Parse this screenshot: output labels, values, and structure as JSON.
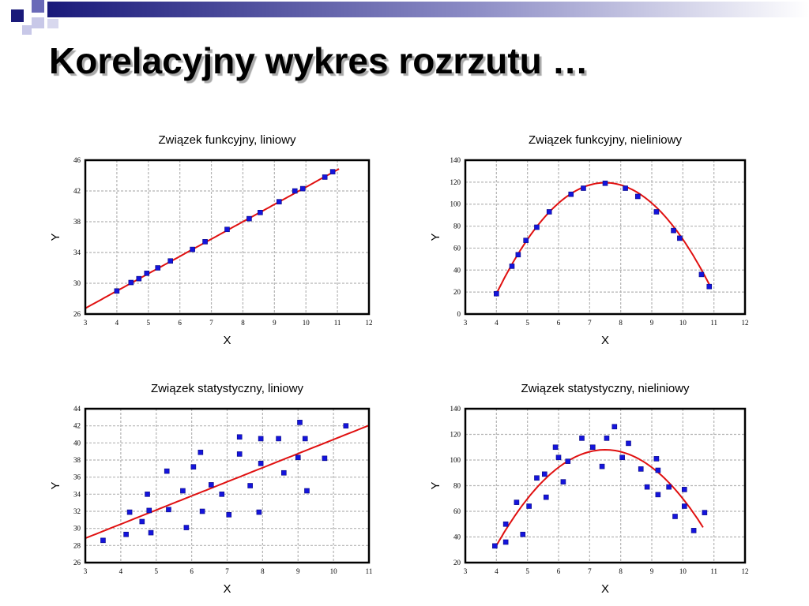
{
  "slide": {
    "title": "Korelacyjny wykres rozrzutu …",
    "colors": {
      "deco_dark": "#1a1a7a",
      "deco_mid": "#6a6ab8",
      "deco_light": "#c8c8e8"
    }
  },
  "chart_data": [
    {
      "type": "scatter",
      "title": "Związek funkcyjny, liniowy",
      "xlabel": "X",
      "ylabel": "Y",
      "xlim": [
        3,
        12
      ],
      "ylim": [
        26,
        46
      ],
      "xticks": [
        3,
        4,
        5,
        6,
        7,
        8,
        9,
        10,
        11,
        12
      ],
      "yticks": [
        26,
        30,
        34,
        38,
        42,
        46
      ],
      "grid": true,
      "marker_color": "#1414dc",
      "fit_color": "#e01010",
      "points": [
        [
          4,
          29
        ],
        [
          4.45,
          30.1
        ],
        [
          4.7,
          30.6
        ],
        [
          4.95,
          31.3
        ],
        [
          5.3,
          32
        ],
        [
          5.7,
          32.9
        ],
        [
          6.4,
          34.4
        ],
        [
          6.8,
          35.4
        ],
        [
          7.5,
          37
        ],
        [
          8.2,
          38.4
        ],
        [
          8.55,
          39.2
        ],
        [
          9.15,
          40.6
        ],
        [
          9.65,
          42.0
        ],
        [
          9.9,
          42.3
        ],
        [
          10.6,
          43.8
        ],
        [
          10.85,
          44.5
        ]
      ],
      "fit": {
        "kind": "linear",
        "coeffs": [
          20,
          2.25
        ],
        "range": [
          3,
          11.05
        ]
      }
    },
    {
      "type": "scatter",
      "title": "Związek funkcyjny, nieliniowy",
      "xlabel": "X",
      "ylabel": "Y",
      "xlim": [
        3,
        12
      ],
      "ylim": [
        0,
        140
      ],
      "xticks": [
        3,
        4,
        5,
        6,
        7,
        8,
        9,
        10,
        11,
        12
      ],
      "yticks": [
        0,
        20,
        40,
        60,
        80,
        100,
        120,
        140
      ],
      "grid": true,
      "marker_color": "#1414dc",
      "fit_color": "#e01010",
      "points": [
        [
          4,
          18.5
        ],
        [
          4.5,
          43.5
        ],
        [
          4.7,
          54
        ],
        [
          4.95,
          67
        ],
        [
          5.3,
          79
        ],
        [
          5.7,
          93
        ],
        [
          6.4,
          109
        ],
        [
          6.8,
          114.5
        ],
        [
          7.5,
          119
        ],
        [
          8.15,
          114.5
        ],
        [
          8.55,
          107
        ],
        [
          9.15,
          93
        ],
        [
          9.7,
          76
        ],
        [
          9.9,
          69
        ],
        [
          10.6,
          36
        ],
        [
          10.85,
          25
        ]
      ],
      "fit": {
        "kind": "quadratic",
        "vertex": [
          7.5,
          119.5
        ],
        "a": -8.25,
        "range": [
          4,
          10.85
        ]
      }
    },
    {
      "type": "scatter",
      "title": "Związek statystyczny, liniowy",
      "xlabel": "X",
      "ylabel": "Y",
      "xlim": [
        3,
        11
      ],
      "ylim": [
        26,
        44
      ],
      "xticks": [
        3,
        4,
        5,
        6,
        7,
        8,
        9,
        10,
        11
      ],
      "yticks": [
        26,
        28,
        30,
        32,
        34,
        36,
        38,
        40,
        42,
        44
      ],
      "grid": true,
      "marker_color": "#1414dc",
      "fit_color": "#e01010",
      "points": [
        [
          3.5,
          28.6
        ],
        [
          4.15,
          29.3
        ],
        [
          4.25,
          31.9
        ],
        [
          4.6,
          30.8
        ],
        [
          4.75,
          34.0
        ],
        [
          4.8,
          32.1
        ],
        [
          4.85,
          29.5
        ],
        [
          5.3,
          36.7
        ],
        [
          5.35,
          32.2
        ],
        [
          5.75,
          34.4
        ],
        [
          5.85,
          30.1
        ],
        [
          6.05,
          37.2
        ],
        [
          6.25,
          38.9
        ],
        [
          6.3,
          32.0
        ],
        [
          6.55,
          35.1
        ],
        [
          6.85,
          34.0
        ],
        [
          7.05,
          31.6
        ],
        [
          7.35,
          40.7
        ],
        [
          7.35,
          38.7
        ],
        [
          7.65,
          35.0
        ],
        [
          7.95,
          40.5
        ],
        [
          7.95,
          37.6
        ],
        [
          7.9,
          31.9
        ],
        [
          8.45,
          40.5
        ],
        [
          8.6,
          36.5
        ],
        [
          9.0,
          38.3
        ],
        [
          9.05,
          42.4
        ],
        [
          9.2,
          40.5
        ],
        [
          9.25,
          34.4
        ],
        [
          9.75,
          38.2
        ],
        [
          10.35,
          42.0
        ]
      ],
      "fit": {
        "kind": "linear",
        "coeffs": [
          23.9,
          1.65
        ],
        "range": [
          3,
          11
        ]
      }
    },
    {
      "type": "scatter",
      "title": "Związek statystyczny, nieliniowy",
      "xlabel": "X",
      "ylabel": "Y",
      "xlim": [
        3,
        12
      ],
      "ylim": [
        20,
        140
      ],
      "xticks": [
        3,
        4,
        5,
        6,
        7,
        8,
        9,
        10,
        11,
        12
      ],
      "yticks": [
        20,
        40,
        60,
        80,
        100,
        120,
        140
      ],
      "grid": true,
      "marker_color": "#1414dc",
      "fit_color": "#e01010",
      "points": [
        [
          3.95,
          33
        ],
        [
          4.3,
          36
        ],
        [
          4.3,
          50
        ],
        [
          4.65,
          67
        ],
        [
          4.85,
          42
        ],
        [
          5.05,
          64
        ],
        [
          5.3,
          86
        ],
        [
          5.55,
          89
        ],
        [
          5.6,
          71
        ],
        [
          5.9,
          110
        ],
        [
          6.0,
          102
        ],
        [
          6.15,
          83
        ],
        [
          6.3,
          99
        ],
        [
          6.75,
          117
        ],
        [
          7.1,
          110
        ],
        [
          7.4,
          95
        ],
        [
          7.55,
          117
        ],
        [
          7.8,
          126
        ],
        [
          8.05,
          102
        ],
        [
          8.25,
          113
        ],
        [
          8.65,
          93
        ],
        [
          8.85,
          79
        ],
        [
          9.15,
          101
        ],
        [
          9.2,
          92
        ],
        [
          9.2,
          73
        ],
        [
          9.55,
          79
        ],
        [
          9.75,
          56
        ],
        [
          10.05,
          77
        ],
        [
          10.05,
          64
        ],
        [
          10.35,
          45
        ],
        [
          10.7,
          59
        ]
      ],
      "fit": {
        "kind": "quadratic",
        "vertex": [
          7.5,
          108
        ],
        "a": -6.1,
        "range": [
          4,
          10.65
        ]
      }
    }
  ]
}
